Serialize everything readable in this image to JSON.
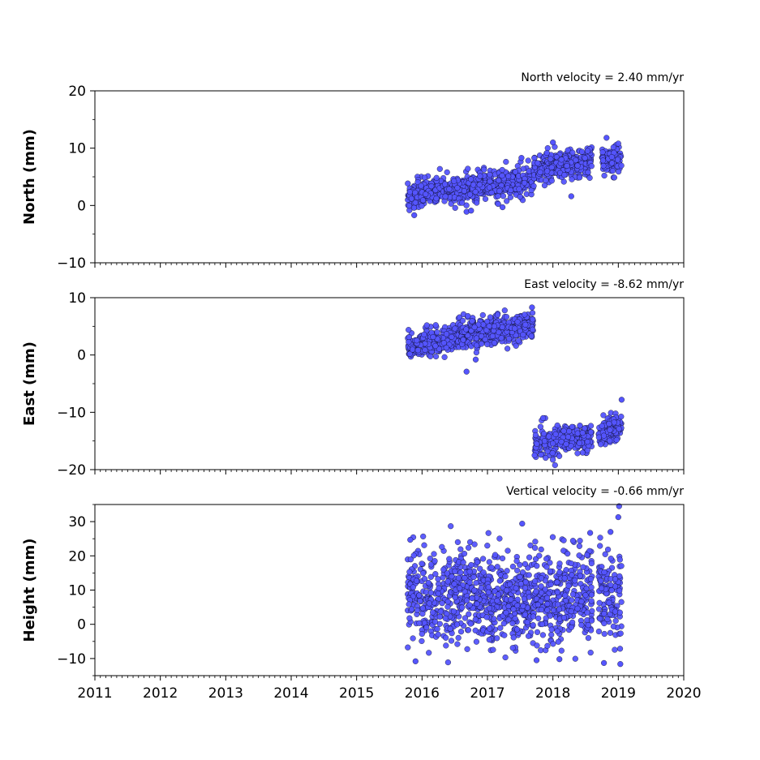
{
  "chart_data": [
    {
      "type": "scatter",
      "panel": "north",
      "title": "North velocity = 2.40 mm/yr",
      "ylabel": "North (mm)",
      "xlim": [
        2011,
        2020
      ],
      "ylim": [
        -10,
        20
      ],
      "yticks": [
        -10,
        0,
        10,
        20
      ],
      "xtick_labels_shown": false,
      "marker_color": "#5555ff",
      "marker_edge": "#000000",
      "segments": [
        {
          "x_start": 2015.78,
          "x_end": 2016.35,
          "y_start": 1.5,
          "y_end": 3.0
        },
        {
          "x_start": 2016.35,
          "x_end": 2017.0,
          "y_start": 2.5,
          "y_end": 3.5
        },
        {
          "x_start": 2017.0,
          "x_end": 2017.7,
          "y_start": 3.0,
          "y_end": 4.5
        },
        {
          "x_start": 2017.7,
          "x_end": 2018.6,
          "y_start": 6.5,
          "y_end": 7.5
        },
        {
          "x_start": 2018.75,
          "x_end": 2019.05,
          "y_start": 7.5,
          "y_end": 8.0
        }
      ],
      "outliers": [
        {
          "x": 2015.88,
          "y": -1.7
        },
        {
          "x": 2016.68,
          "y": -1.1
        },
        {
          "x": 2016.75,
          "y": -0.9
        },
        {
          "x": 2017.23,
          "y": -0.3
        },
        {
          "x": 2018.28,
          "y": 1.6
        },
        {
          "x": 2018.0,
          "y": 11.0
        },
        {
          "x": 2018.82,
          "y": 11.8
        },
        {
          "x": 2017.52,
          "y": 8.3
        }
      ]
    },
    {
      "type": "scatter",
      "panel": "east",
      "title": "East velocity = -8.62 mm/yr",
      "ylabel": "East (mm)",
      "xlim": [
        2011,
        2020
      ],
      "ylim": [
        -20,
        10
      ],
      "yticks": [
        -20,
        -10,
        0,
        10
      ],
      "xtick_labels_shown": false,
      "marker_color": "#5555ff",
      "marker_edge": "#000000",
      "segments": [
        {
          "x_start": 2015.78,
          "x_end": 2016.6,
          "y_start": 1.5,
          "y_end": 3.5
        },
        {
          "x_start": 2016.6,
          "x_end": 2017.7,
          "y_start": 3.5,
          "y_end": 5.0
        },
        {
          "x_start": 2017.72,
          "x_end": 2018.6,
          "y_start": -15.5,
          "y_end": -14.5
        },
        {
          "x_start": 2018.7,
          "x_end": 2019.05,
          "y_start": -14.0,
          "y_end": -12.0
        }
      ],
      "outliers": [
        {
          "x": 2016.68,
          "y": -2.9
        },
        {
          "x": 2016.82,
          "y": -0.8
        },
        {
          "x": 2017.68,
          "y": 8.3
        },
        {
          "x": 2016.7,
          "y": 6.8
        },
        {
          "x": 2019.05,
          "y": -7.8
        },
        {
          "x": 2017.72,
          "y": -17.5
        },
        {
          "x": 2017.85,
          "y": -11.0
        }
      ]
    },
    {
      "type": "scatter",
      "panel": "height",
      "title": "Vertical velocity = -0.66 mm/yr",
      "ylabel": "Height (mm)",
      "xlim": [
        2011,
        2020
      ],
      "ylim": [
        -15,
        35
      ],
      "yticks": [
        -10,
        0,
        10,
        20,
        30
      ],
      "xticks": [
        2011,
        2012,
        2013,
        2014,
        2015,
        2016,
        2017,
        2018,
        2019,
        2020
      ],
      "xtick_labels": [
        "2011",
        "2012",
        "2013",
        "2014",
        "2015",
        "2016",
        "2017",
        "2018",
        "2019",
        "2020"
      ],
      "xtick_labels_shown": true,
      "marker_color": "#5555ff",
      "marker_edge": "#000000",
      "segments": [
        {
          "x_start": 2015.78,
          "x_end": 2017.7,
          "y_start": 8.0,
          "y_end": 8.0,
          "spread": 6.5
        },
        {
          "x_start": 2017.7,
          "x_end": 2018.6,
          "y_start": 6.0,
          "y_end": 10.0,
          "spread": 6.5
        },
        {
          "x_start": 2018.7,
          "x_end": 2019.05,
          "y_start": 8.0,
          "y_end": 8.0,
          "spread": 7.0
        }
      ],
      "outliers": [
        {
          "x": 2015.82,
          "y": 24.7
        },
        {
          "x": 2017.53,
          "y": 29.4
        },
        {
          "x": 2019.0,
          "y": 31.3
        },
        {
          "x": 2018.57,
          "y": 26.7
        },
        {
          "x": 2015.9,
          "y": -10.8
        },
        {
          "x": 2017.75,
          "y": -10.5
        },
        {
          "x": 2018.1,
          "y": -10.2
        },
        {
          "x": 2018.78,
          "y": -11.3
        },
        {
          "x": 2019.03,
          "y": -11.6
        },
        {
          "x": 2018.88,
          "y": 27.0
        }
      ]
    }
  ]
}
